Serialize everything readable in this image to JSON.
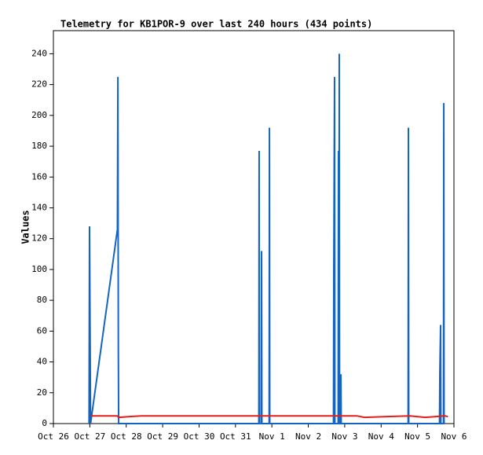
{
  "chart_data": {
    "type": "line",
    "title": "Telemetry for KB1POR-9 over last 240 hours (434 points)",
    "y_label": "Values",
    "xlim": [
      0,
      264
    ],
    "xticks": [
      {
        "value": 0,
        "label": "Oct 26"
      },
      {
        "value": 24,
        "label": "Oct 27"
      },
      {
        "value": 48,
        "label": "Oct 28"
      },
      {
        "value": 72,
        "label": "Oct 29"
      },
      {
        "value": 96,
        "label": "Oct 30"
      },
      {
        "value": 120,
        "label": "Oct 31"
      },
      {
        "value": 144,
        "label": "Nov 1"
      },
      {
        "value": 168,
        "label": "Nov 2"
      },
      {
        "value": 192,
        "label": "Nov 3"
      },
      {
        "value": 216,
        "label": "Nov 4"
      },
      {
        "value": 240,
        "label": "Nov 5"
      },
      {
        "value": 264,
        "label": "Nov 6"
      }
    ],
    "ylim": [
      0,
      255
    ],
    "yticks": [
      0,
      20,
      40,
      60,
      80,
      100,
      120,
      140,
      160,
      180,
      200,
      220,
      240
    ],
    "grid": false,
    "series": [
      {
        "color": "#1565c0",
        "x": [
          23.5,
          23.8,
          24.5,
          42.2,
          42.5,
          42.8,
          43,
          135.4,
          135.6,
          135.8,
          137,
          137.2,
          137.4,
          142.2,
          142.4,
          142.6,
          184.6,
          184.8,
          185.3,
          185.5,
          187.7,
          187.9,
          188.2,
          188.4,
          188.6,
          189.3,
          189.5,
          189.7,
          233.8,
          234,
          234.2,
          254.5,
          254.7,
          255.2,
          255.4,
          257.1,
          257.3,
          257.5
        ],
        "values": [
          0,
          128,
          0,
          126,
          225,
          48,
          0,
          0,
          177,
          0,
          0,
          112,
          0,
          0,
          192,
          0,
          0,
          97,
          225,
          0,
          0,
          177,
          0,
          240,
          0,
          0,
          32,
          0,
          0,
          192,
          0,
          0,
          32,
          64,
          0,
          0,
          208,
          0
        ]
      },
      {
        "color": "#e0201c",
        "x": [
          24.5,
          42,
          43,
          50,
          58,
          135,
          200,
          205,
          220,
          235,
          245,
          252,
          258,
          260
        ],
        "values": [
          5,
          5,
          4,
          4.5,
          5,
          5,
          5,
          4,
          4.5,
          5,
          4,
          4.5,
          5,
          4.5
        ]
      }
    ]
  }
}
